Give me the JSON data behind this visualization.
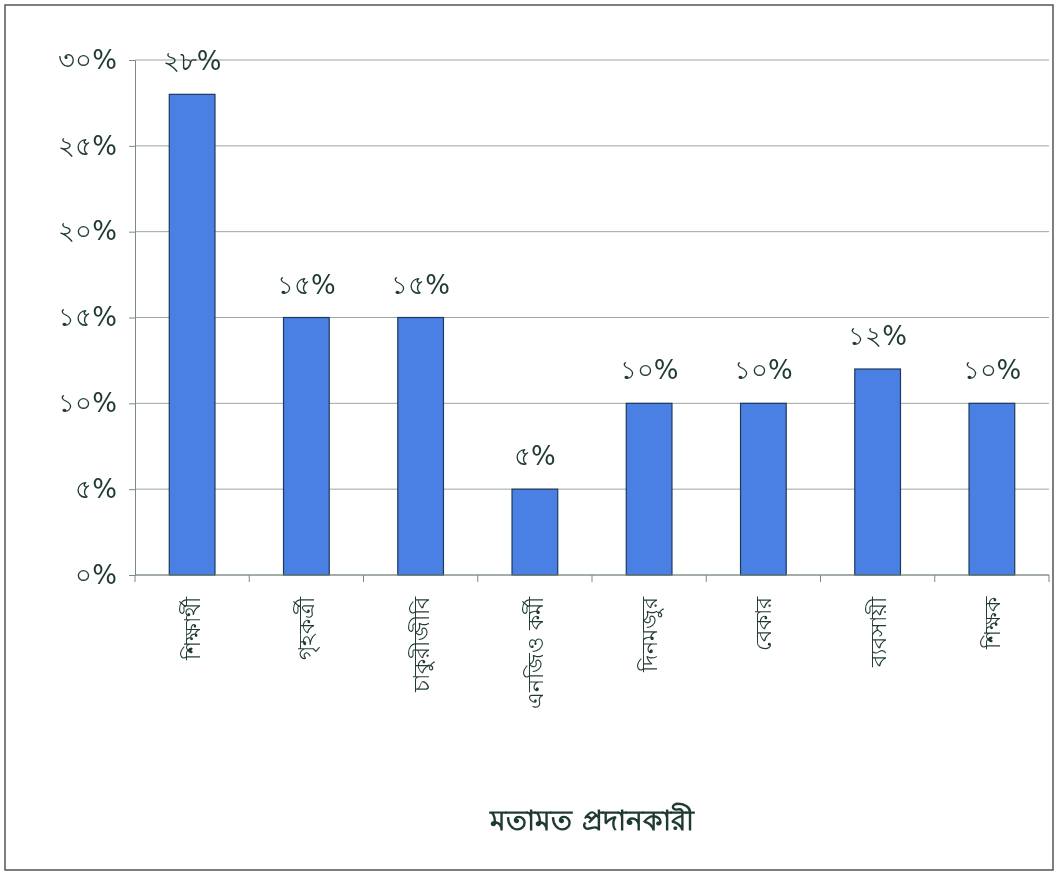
{
  "chart_data": {
    "type": "bar",
    "xlabel": "মতামত প্রদানকারী",
    "categories": [
      "শিক্ষার্থী",
      "গৃহকর্ত্রী",
      "চাকুরীজীবি",
      "এনজিও কর্মী",
      "দিনমজুর",
      "বেকার",
      "ব্যবসায়ী",
      "শিক্ষক"
    ],
    "values": [
      28,
      15,
      15,
      5,
      10,
      10,
      12,
      10
    ],
    "value_labels": [
      "২৮%",
      "১৫%",
      "১৫%",
      "৫%",
      "১০%",
      "১০%",
      "১২%",
      "১০%"
    ],
    "color": "#4a80e4",
    "ylim": [
      0,
      30
    ],
    "yticks": [
      {
        "value": 0,
        "label": "০%"
      },
      {
        "value": 5,
        "label": "৫%"
      },
      {
        "value": 10,
        "label": "১০%"
      },
      {
        "value": 15,
        "label": "১৫%"
      },
      {
        "value": 20,
        "label": "২০%"
      },
      {
        "value": 25,
        "label": "২৫%"
      },
      {
        "value": 30,
        "label": "৩০%"
      }
    ],
    "grid": "y"
  }
}
